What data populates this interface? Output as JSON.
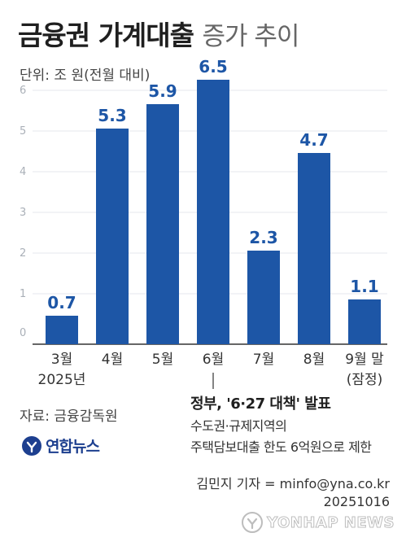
{
  "header": {
    "title_bold": "금융권 가계대출",
    "title_light": "증가 추이",
    "unit": "단위: 조 원(전월 대비)"
  },
  "chart_data": {
    "type": "bar",
    "categories": [
      "3월",
      "4월",
      "5월",
      "6월",
      "7월",
      "8월",
      "9월 말"
    ],
    "category_sublabels": [
      "2025년",
      "",
      "",
      "",
      "",
      "",
      "(잠정)"
    ],
    "values": [
      0.7,
      5.3,
      5.9,
      6.5,
      2.3,
      4.7,
      1.1
    ],
    "value_labels": [
      "0.7",
      "5.3",
      "5.9",
      "6.5",
      "2.3",
      "4.7",
      "1.1"
    ],
    "yticks": [
      "0",
      "1",
      "2",
      "3",
      "4",
      "5",
      "6"
    ],
    "ylim": [
      0,
      6.8
    ],
    "bar_color": "#1d56a6",
    "grid": true,
    "xlabel": "",
    "ylabel": ""
  },
  "annotation": {
    "title": "정부, '6·27 대책' 발표",
    "line1": "수도권·규제지역의",
    "line2": "주택담보대출 한도 6억원으로 제한"
  },
  "source": "자료: 금융감독원",
  "logo": {
    "text": "연합뉴스",
    "icon": "yonhap-logo-icon"
  },
  "credit": {
    "reporter": "김민지 기자 = minfo@yna.co.kr",
    "date": "20251016"
  },
  "watermark": {
    "text": "YONHAP NEWS",
    "icon": "yonhap-watermark-icon"
  },
  "colors": {
    "accent": "#1d56a6",
    "logo": "#1d3f8f"
  }
}
